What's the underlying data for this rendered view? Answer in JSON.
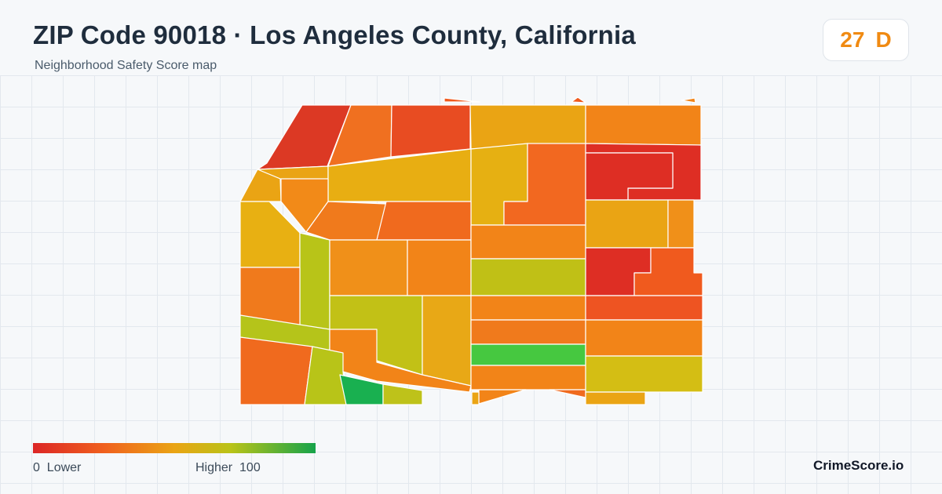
{
  "header": {
    "title": "ZIP Code 90018 · Los Angeles County, California",
    "subtitle": "Neighborhood Safety Score map"
  },
  "score_badge": {
    "score": "27",
    "grade": "D",
    "color": "#f08a12"
  },
  "legend": {
    "min_label": "0",
    "low_label": "Lower",
    "high_label": "Higher",
    "max_label": "100",
    "gradient_colors": [
      "#dc2626",
      "#f0601e",
      "#eaa414",
      "#b9c318",
      "#16a34a"
    ]
  },
  "brand": "CrimeScore.io",
  "colors": {
    "tile_border": "#ffffff",
    "grid_line": "#e3e8ee",
    "background": "#f6f8fa"
  }
}
